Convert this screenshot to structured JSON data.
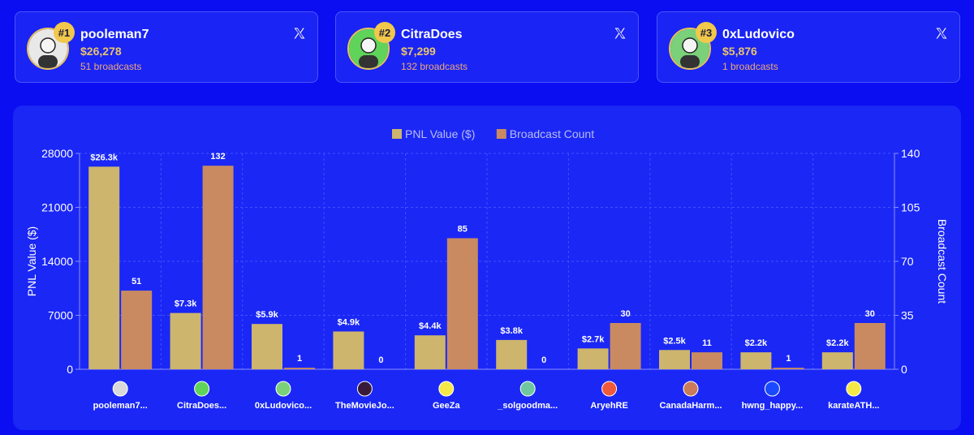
{
  "cards": [
    {
      "rank": "#1",
      "name": "pooleman7",
      "pnl": "$26,278",
      "broadcasts": "51 broadcasts",
      "avatar_color": "#e8e8e8",
      "icon": "x-logo-icon"
    },
    {
      "rank": "#2",
      "name": "CitraDoes",
      "pnl": "$7,299",
      "broadcasts": "132 broadcasts",
      "avatar_color": "#5fd35a",
      "icon": "x-logo-icon"
    },
    {
      "rank": "#3",
      "name": "0xLudovico",
      "pnl": "$5,876",
      "broadcasts": "1 broadcasts",
      "avatar_color": "#7bd07a",
      "icon": "x-logo-icon"
    }
  ],
  "chart_data": {
    "type": "bar",
    "legend": [
      "PNL Value ($)",
      "Broadcast Count"
    ],
    "legend_position": "top-center",
    "categories": [
      "pooleman7...",
      "CitraDoes...",
      "0xLudovico...",
      "TheMovieJo...",
      "GeeZa",
      "_solgoodma...",
      "AryehRE",
      "CanadaHarm...",
      "hwng_happy...",
      "karateATH..."
    ],
    "category_avatar_colors": [
      "#d9d9d9",
      "#5fd35a",
      "#7bd07a",
      "#3a1a3a",
      "#f5e94a",
      "#6fc7a0",
      "#f05a3a",
      "#c97b5a",
      "#1a4aff",
      "#f5e94a"
    ],
    "series": [
      {
        "name": "PNL Value ($)",
        "axis": "left",
        "color": "#cdb56d",
        "values": [
          26278,
          7299,
          5876,
          4900,
          4400,
          3800,
          2700,
          2500,
          2200,
          2200
        ],
        "labels": [
          "$26.3k",
          "$7.3k",
          "$5.9k",
          "$4.9k",
          "$4.4k",
          "$3.8k",
          "$2.7k",
          "$2.5k",
          "$2.2k",
          "$2.2k"
        ]
      },
      {
        "name": "Broadcast Count",
        "axis": "right",
        "color": "#c98a62",
        "values": [
          51,
          132,
          1,
          0,
          85,
          0,
          30,
          11,
          1,
          30
        ],
        "labels": [
          "51",
          "132",
          "1",
          "0",
          "85",
          "0",
          "30",
          "11",
          "1",
          "30"
        ]
      }
    ],
    "y_left": {
      "label": "PNL Value ($)",
      "min": 0,
      "max": 28000,
      "ticks": [
        "0",
        "7000",
        "14000",
        "21000",
        "28000"
      ]
    },
    "y_right": {
      "label": "Broadcast Count",
      "min": 0,
      "max": 140,
      "ticks": [
        "0",
        "35",
        "70",
        "105",
        "140"
      ]
    },
    "grid": true
  }
}
